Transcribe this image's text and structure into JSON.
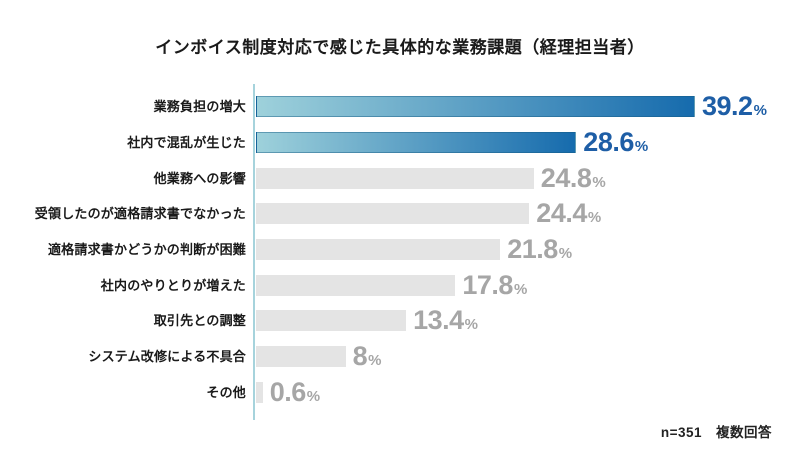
{
  "page": {
    "background": "#FFFFFF"
  },
  "chart_data": {
    "type": "bar",
    "orientation": "horizontal",
    "title": "インボイス制度対応で感じた具体的な業務課題（経理担当者）",
    "categories": [
      "業務負担の増大",
      "社内で混乱が生じた",
      "他業務への影響",
      "受領したのが適格請求書でなかった",
      "適格請求書かどうかの判断が困難",
      "社内のやりとりが増えた",
      "取引先との調整",
      "システム改修による不具合",
      "その他"
    ],
    "values": [
      39.2,
      28.6,
      24.8,
      24.4,
      21.8,
      17.8,
      13.4,
      8,
      0.6
    ],
    "value_labels": [
      "39.2",
      "28.6",
      "24.8",
      "24.4",
      "21.8",
      "17.8",
      "13.4",
      "8",
      "0.6"
    ],
    "unit": "%",
    "highlighted_indices": [
      0,
      1
    ],
    "xlim": [
      0,
      40
    ],
    "grid": false,
    "legend": "none",
    "note": "n=351　複数回答"
  },
  "colors": {
    "highlight_gradient_start": "#9ED1DB",
    "highlight_gradient_end": "#166BAD",
    "highlight_value_text": "#1E5EA6",
    "bar_gray": "#E4E4E4",
    "gray_value_text": "#A6A6A6",
    "axis_line": "#A6D3DC",
    "title_text": "#1A1A1A",
    "label_text": "#1A1A1A",
    "note_text": "#222222"
  }
}
